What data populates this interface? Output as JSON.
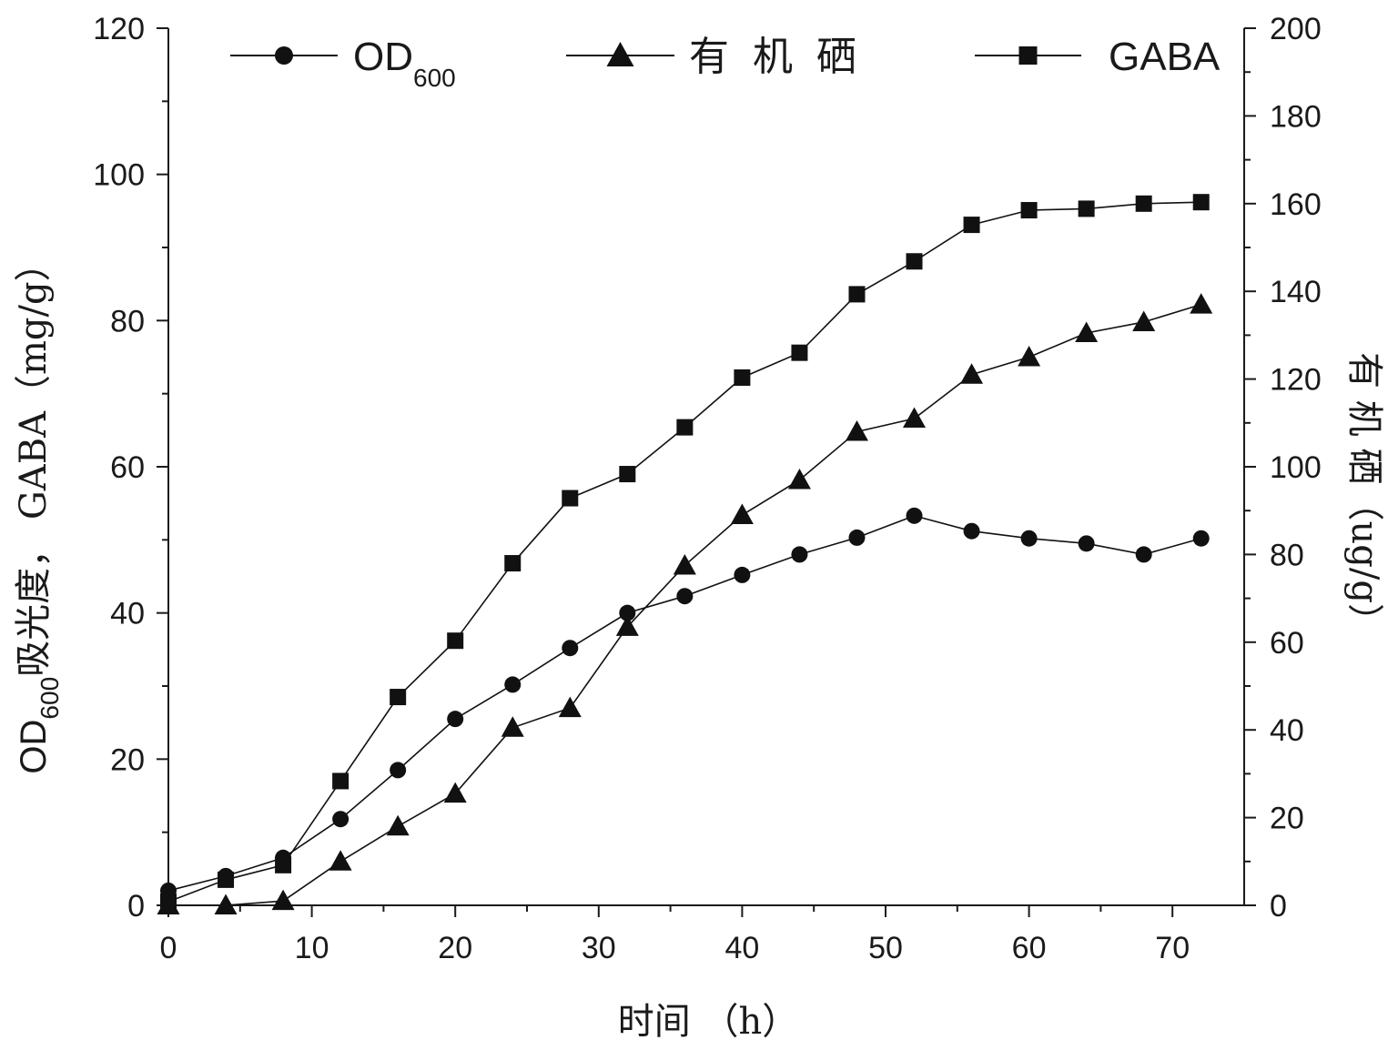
{
  "chart_data": {
    "type": "line",
    "xlabel": "时间 （h）",
    "ylabel_left": {
      "main": "OD",
      "sub": "600",
      "rest": "吸光度，  GABA（mg/g）"
    },
    "ylabel_right": "有 机 硒（ug/g）",
    "xlim": [
      0,
      75
    ],
    "ylim_left": [
      0,
      120
    ],
    "ylim_right": [
      0,
      200
    ],
    "x_ticks": [
      0,
      10,
      20,
      30,
      40,
      50,
      60,
      70
    ],
    "y_left_ticks": [
      0,
      20,
      40,
      60,
      80,
      100,
      120
    ],
    "y_right_ticks": [
      0,
      20,
      40,
      60,
      80,
      100,
      120,
      140,
      160,
      180,
      200
    ],
    "legend_position": "top",
    "grid": false,
    "series": [
      {
        "name": "OD",
        "name_sub": "600",
        "marker": "circle",
        "axis": "left",
        "x": [
          0,
          4,
          8,
          12,
          16,
          20,
          24,
          28,
          32,
          36,
          40,
          44,
          48,
          52,
          56,
          60,
          64,
          68,
          72
        ],
        "values": [
          2,
          4,
          6.5,
          11.8,
          18.5,
          25.5,
          30.2,
          35.2,
          40,
          42.3,
          45.2,
          48,
          50.3,
          53.3,
          51.2,
          50.2,
          49.5,
          48,
          50.2
        ]
      },
      {
        "name": "有 机 硒",
        "marker": "triangle",
        "axis": "right",
        "x": [
          0,
          4,
          8,
          12,
          16,
          20,
          24,
          28,
          32,
          36,
          40,
          44,
          48,
          52,
          56,
          60,
          64,
          68,
          72
        ],
        "values": [
          0,
          0,
          1,
          10,
          18,
          25.5,
          40.5,
          45,
          63.5,
          77.5,
          89,
          97,
          108,
          111,
          121,
          125,
          130.5,
          133,
          137
        ]
      },
      {
        "name": "GABA",
        "marker": "square",
        "axis": "left",
        "x": [
          0,
          4,
          8,
          12,
          16,
          20,
          24,
          28,
          32,
          36,
          40,
          44,
          48,
          52,
          56,
          60,
          64,
          68,
          72
        ],
        "values": [
          0.5,
          3.5,
          5.5,
          17,
          28.5,
          36.2,
          46.8,
          55.7,
          59,
          65.4,
          72.2,
          75.6,
          83.6,
          88.1,
          93.1,
          95.1,
          95.3,
          96,
          96.2
        ]
      }
    ]
  }
}
